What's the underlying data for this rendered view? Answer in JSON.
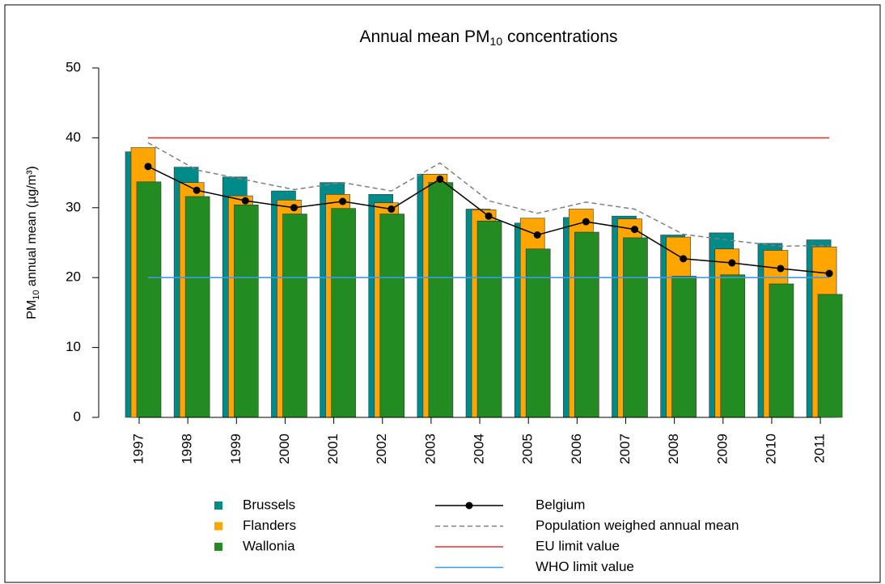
{
  "chart_data": {
    "type": "bar",
    "title": {
      "main": "Annual mean PM",
      "sub": "10",
      "tail": " concentrations"
    },
    "y_label": {
      "main": "PM",
      "sub": "10",
      "tail": " annual mean (µg/m³)"
    },
    "categories": [
      "1997",
      "1998",
      "1999",
      "2000",
      "2001",
      "2002",
      "2003",
      "2004",
      "2005",
      "2006",
      "2007",
      "2008",
      "2009",
      "2010",
      "2011"
    ],
    "series": [
      {
        "name": "Brussels",
        "color": "#008b8b",
        "values": [
          38.0,
          35.8,
          34.4,
          32.4,
          33.6,
          31.9,
          34.8,
          29.8,
          27.8,
          28.6,
          28.8,
          26.1,
          26.4,
          24.9,
          25.4
        ]
      },
      {
        "name": "Flanders",
        "color": "#ffa500",
        "values": [
          38.6,
          33.6,
          31.7,
          31.1,
          31.9,
          30.7,
          34.8,
          29.7,
          28.5,
          29.8,
          28.4,
          25.8,
          24.1,
          23.9,
          24.4
        ]
      },
      {
        "name": "Wallonia",
        "color": "#228b22",
        "values": [
          33.7,
          31.6,
          30.4,
          29.1,
          29.9,
          29.1,
          33.6,
          28.1,
          24.1,
          26.5,
          25.7,
          20.2,
          20.4,
          19.1,
          17.6
        ]
      }
    ],
    "lines": [
      {
        "name": "Belgium",
        "color": "#000000",
        "style": "solid-marker",
        "values": [
          35.9,
          32.5,
          31.0,
          30.0,
          30.9,
          29.8,
          34.1,
          28.8,
          26.1,
          28.0,
          26.9,
          22.7,
          22.1,
          21.3,
          20.6
        ]
      },
      {
        "name": "Population weighed annual mean",
        "color": "#808080",
        "style": "dashed",
        "values": [
          39.3,
          35.4,
          34.0,
          32.6,
          33.6,
          32.4,
          36.4,
          31.0,
          29.2,
          30.8,
          29.8,
          26.2,
          25.3,
          24.5,
          24.6
        ]
      }
    ],
    "limits": [
      {
        "name": "EU limit value",
        "color": "#e8322d",
        "value": 40
      },
      {
        "name": "WHO limit value",
        "color": "#3d9be9",
        "value": 20
      }
    ],
    "ylim": [
      0,
      50
    ],
    "yticks": [
      0,
      10,
      20,
      30,
      40,
      50
    ]
  }
}
